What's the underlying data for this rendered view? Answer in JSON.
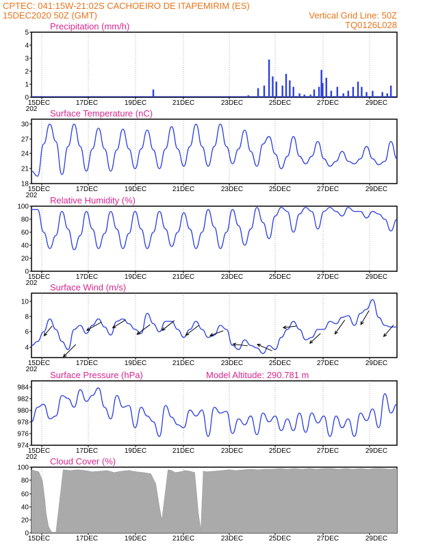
{
  "header": {
    "line1": "CPTEC:  041:15W-21:02S  CACHOEIRO DE ITAPEMIRIM (ES)",
    "line2_left": "15DEC2020 50Z (GMT)",
    "line2_right": "Vertical Grid Line: 50Z",
    "line3_right": "TQ0126L028"
  },
  "colors": {
    "header": "#e8741a",
    "title": "#d6278f",
    "series": "#2b3fe0",
    "cloud": "#aaaaaa",
    "grid": "#555555"
  },
  "x_axis": {
    "labels": [
      "15DEC",
      "17DEC",
      "19DEC",
      "21DEC",
      "23DEC",
      "25DEC",
      "27DEC",
      "29DEC"
    ],
    "year_fragment": "202"
  },
  "chart_data": [
    {
      "id": "precip",
      "type": "bar",
      "title": "Precipitation (mm/h)",
      "ylim": [
        0,
        5
      ],
      "yticks": [
        "0",
        "1",
        "2",
        "3",
        "4",
        "5"
      ],
      "xlim_days": [
        15,
        30
      ],
      "x_days": [
        20.0,
        23.9,
        24.3,
        24.55,
        24.75,
        24.9,
        25.05,
        25.3,
        25.45,
        25.6,
        25.75,
        26.0,
        26.2,
        26.45,
        26.6,
        26.8,
        26.9,
        26.95,
        27.1,
        27.3,
        27.55,
        27.8,
        28.0,
        28.2,
        28.4,
        28.55,
        28.75,
        29.0,
        29.4,
        29.6,
        29.75
      ],
      "values": [
        0.6,
        0.15,
        0.7,
        0.9,
        2.9,
        1.6,
        1.2,
        0.9,
        1.8,
        1.3,
        0.8,
        0.3,
        0.2,
        0.2,
        0.6,
        0.8,
        2.1,
        1.1,
        1.5,
        0.5,
        0.8,
        0.3,
        0.5,
        0.8,
        1.2,
        0.8,
        0.4,
        0.5,
        0.4,
        0.3,
        0.9
      ]
    },
    {
      "id": "temp",
      "type": "line",
      "title": "Surface Temperature (nC)",
      "ylim": [
        18,
        31
      ],
      "yticks": [
        "18",
        "21",
        "24",
        "27",
        "30"
      ],
      "xlim_days": [
        15,
        30
      ],
      "x_days": [
        15.0,
        15.25,
        15.5,
        15.75,
        16.0,
        16.25,
        16.5,
        16.75,
        17.0,
        17.25,
        17.5,
        17.75,
        18.0,
        18.25,
        18.5,
        18.75,
        19.0,
        19.25,
        19.5,
        19.75,
        20.0,
        20.25,
        20.5,
        20.75,
        21.0,
        21.25,
        21.5,
        21.75,
        22.0,
        22.25,
        22.5,
        22.75,
        23.0,
        23.25,
        23.5,
        23.75,
        24.0,
        24.25,
        24.5,
        24.75,
        25.0,
        25.25,
        25.5,
        25.75,
        26.0,
        26.25,
        26.5,
        26.75,
        27.0,
        27.25,
        27.5,
        27.75,
        28.0,
        28.25,
        28.5,
        28.75,
        29.0,
        29.25,
        29.5,
        29.75,
        30.0
      ],
      "values": [
        20.5,
        19.5,
        26.0,
        30.0,
        26.5,
        19.8,
        25.5,
        30.0,
        25.5,
        20.5,
        25.0,
        29.2,
        25.0,
        20.5,
        24.8,
        29.0,
        25.0,
        21.0,
        25.0,
        28.8,
        24.8,
        21.0,
        25.0,
        29.5,
        25.0,
        21.5,
        25.5,
        30.0,
        25.5,
        21.5,
        25.5,
        30.0,
        25.5,
        22.0,
        25.0,
        28.8,
        24.5,
        21.5,
        26.0,
        27.5,
        24.0,
        21.0,
        23.5,
        27.5,
        23.5,
        22.0,
        23.5,
        26.5,
        23.0,
        21.5,
        22.5,
        24.5,
        22.5,
        22.0,
        23.0,
        25.5,
        23.0,
        21.8,
        22.5,
        26.5,
        23.0
      ]
    },
    {
      "id": "rh",
      "type": "line",
      "title": "Relative Humidity (%)",
      "ylim": [
        0,
        100
      ],
      "yticks": [
        "0",
        "20",
        "40",
        "60",
        "80",
        "100"
      ],
      "xlim_days": [
        15,
        30
      ],
      "x_days": [
        15.0,
        15.25,
        15.5,
        15.75,
        16.0,
        16.25,
        16.5,
        16.75,
        17.0,
        17.25,
        17.5,
        17.75,
        18.0,
        18.25,
        18.5,
        18.75,
        19.0,
        19.25,
        19.5,
        19.75,
        20.0,
        20.25,
        20.5,
        20.75,
        21.0,
        21.25,
        21.5,
        21.75,
        22.0,
        22.25,
        22.5,
        22.75,
        23.0,
        23.25,
        23.5,
        23.75,
        24.0,
        24.25,
        24.5,
        24.75,
        25.0,
        25.25,
        25.5,
        25.75,
        26.0,
        26.25,
        26.5,
        26.75,
        27.0,
        27.25,
        27.5,
        27.75,
        28.0,
        28.25,
        28.5,
        28.75,
        29.0,
        29.25,
        29.5,
        29.75,
        30.0
      ],
      "values": [
        95.0,
        95.0,
        60.0,
        35.0,
        55.0,
        92.0,
        65.0,
        33.0,
        55.0,
        92.0,
        65.0,
        35.0,
        58.0,
        92.0,
        65.0,
        35.0,
        58.0,
        92.0,
        65.0,
        35.0,
        60.0,
        92.0,
        65.0,
        38.0,
        60.0,
        90.0,
        65.0,
        35.0,
        60.0,
        95.0,
        68.0,
        35.0,
        60.0,
        95.0,
        70.0,
        40.0,
        65.0,
        98.0,
        75.0,
        50.0,
        85.0,
        98.0,
        92.0,
        60.0,
        88.0,
        98.0,
        92.0,
        65.0,
        92.0,
        98.0,
        92.0,
        85.0,
        98.0,
        92.0,
        92.0,
        82.0,
        92.0,
        88.0,
        80.0,
        62.0,
        80.0
      ]
    },
    {
      "id": "wind",
      "type": "line",
      "title": "Surface Wind (m/s)",
      "ylim": [
        3,
        11
      ],
      "yticks": [
        "4",
        "6",
        "8",
        "10"
      ],
      "xlim_days": [
        15,
        30
      ],
      "x_days": [
        15.0,
        15.25,
        15.5,
        15.75,
        16.0,
        16.25,
        16.5,
        16.75,
        17.0,
        17.25,
        17.5,
        17.75,
        18.0,
        18.25,
        18.5,
        18.75,
        19.0,
        19.25,
        19.5,
        19.75,
        20.0,
        20.25,
        20.5,
        20.75,
        21.0,
        21.25,
        21.5,
        21.75,
        22.0,
        22.25,
        22.5,
        22.75,
        23.0,
        23.25,
        23.5,
        23.75,
        24.0,
        24.25,
        24.5,
        24.75,
        25.0,
        25.25,
        25.5,
        25.75,
        26.0,
        26.25,
        26.5,
        26.75,
        27.0,
        27.25,
        27.5,
        27.75,
        28.0,
        28.25,
        28.5,
        28.75,
        29.0,
        29.25,
        29.5,
        29.75,
        30.0
      ],
      "values": [
        4.5,
        5.0,
        6.2,
        7.8,
        6.5,
        5.0,
        4.0,
        6.5,
        7.0,
        6.0,
        7.0,
        7.8,
        6.8,
        5.8,
        7.5,
        7.8,
        7.2,
        6.5,
        6.0,
        8.5,
        7.2,
        6.2,
        7.5,
        7.5,
        6.5,
        5.5,
        6.5,
        7.5,
        6.5,
        5.5,
        5.8,
        7.0,
        6.5,
        4.5,
        4.0,
        5.2,
        4.5,
        4.2,
        3.5,
        4.5,
        4.0,
        5.5,
        6.5,
        7.5,
        6.5,
        5.2,
        5.5,
        6.5,
        6.5,
        7.5,
        7.2,
        8.0,
        8.2,
        7.0,
        8.5,
        9.0,
        10.2,
        8.0,
        7.0,
        6.8,
        6.8
      ],
      "arrow_days": [
        15.6,
        16.55,
        17.6,
        18.6,
        19.6,
        20.6,
        21.6,
        22.6,
        23.6,
        24.6,
        25.6,
        26.6,
        27.6,
        28.6,
        29.6
      ],
      "arrow_dx": [
        0.5,
        0.75,
        0.9,
        0.8,
        0.8,
        0.75,
        0.8,
        0.8,
        0.9,
        0.9,
        0.8,
        0.65,
        0.6,
        0.5,
        0.6
      ],
      "arrow_dy": [
        -0.6,
        -0.75,
        -0.5,
        -0.5,
        -0.6,
        -0.6,
        -0.6,
        -0.3,
        0.1,
        0.4,
        -0.1,
        -0.6,
        -0.85,
        -0.85,
        -0.7
      ]
    },
    {
      "id": "pres",
      "type": "line",
      "title": "Surface Pressure (hPa)",
      "annotation": "Model Altitude: 290.781 m",
      "ylim": [
        974,
        985
      ],
      "yticks": [
        "974",
        "976",
        "978",
        "980",
        "982",
        "984"
      ],
      "xlim_days": [
        15,
        30
      ],
      "x_days": [
        15.0,
        15.25,
        15.5,
        15.75,
        16.0,
        16.25,
        16.5,
        16.75,
        17.0,
        17.25,
        17.5,
        17.75,
        18.0,
        18.25,
        18.5,
        18.75,
        19.0,
        19.25,
        19.5,
        19.75,
        20.0,
        20.25,
        20.5,
        20.75,
        21.0,
        21.25,
        21.5,
        21.75,
        22.0,
        22.25,
        22.5,
        22.75,
        23.0,
        23.25,
        23.5,
        23.75,
        24.0,
        24.25,
        24.5,
        24.75,
        25.0,
        25.25,
        25.5,
        25.75,
        26.0,
        26.25,
        26.5,
        26.75,
        27.0,
        27.25,
        27.5,
        27.75,
        28.0,
        28.25,
        28.5,
        28.75,
        29.0,
        29.25,
        29.5,
        29.75,
        30.0
      ],
      "values": [
        978.0,
        980.5,
        981.0,
        978.5,
        979.0,
        982.5,
        982.0,
        980.5,
        983.5,
        981.5,
        982.5,
        983.8,
        980.5,
        978.5,
        982.5,
        980.5,
        980.8,
        977.0,
        980.5,
        979.0,
        978.0,
        975.5,
        980.8,
        978.8,
        977.5,
        977.0,
        980.0,
        979.0,
        980.0,
        975.5,
        980.5,
        979.5,
        979.8,
        976.0,
        978.5,
        977.5,
        979.0,
        975.8,
        979.5,
        978.0,
        979.0,
        976.5,
        978.5,
        976.5,
        979.5,
        976.2,
        979.5,
        977.8,
        979.0,
        975.5,
        979.0,
        977.0,
        978.5,
        975.5,
        979.5,
        978.2,
        980.2,
        977.0,
        982.8,
        979.5,
        981.0
      ]
    },
    {
      "id": "cloud",
      "type": "area",
      "title": "Cloud Cover (%)",
      "ylim": [
        0,
        100
      ],
      "yticks": [
        "0",
        "20",
        "40",
        "60",
        "80",
        "100"
      ],
      "xlim_days": [
        15,
        30
      ],
      "x_days": [
        15.0,
        15.3,
        15.45,
        15.55,
        15.6,
        15.7,
        15.8,
        15.9,
        16.0,
        16.3,
        16.6,
        16.9,
        17.2,
        17.5,
        17.8,
        18.1,
        18.4,
        18.7,
        19.0,
        19.3,
        19.6,
        19.9,
        20.1,
        20.25,
        20.35,
        20.45,
        20.6,
        20.75,
        20.9,
        21.1,
        21.3,
        21.5,
        21.7,
        21.85,
        21.95,
        22.05,
        22.2,
        22.5,
        22.8,
        23.1,
        23.4,
        23.7,
        24.0,
        24.3,
        24.6,
        24.9,
        25.2,
        25.5,
        25.8,
        26.1,
        26.4,
        26.7,
        27.0,
        27.3,
        27.6,
        27.9,
        28.2,
        28.5,
        28.8,
        29.1,
        29.4,
        29.7,
        30.0
      ],
      "values": [
        96.0,
        93.0,
        80.0,
        50.0,
        30.0,
        10.0,
        3.0,
        0.0,
        0.0,
        96.0,
        95.0,
        96.0,
        95.0,
        93.0,
        94.0,
        95.0,
        92.0,
        94.0,
        95.0,
        93.0,
        92.0,
        90.0,
        75.0,
        40.0,
        20.0,
        50.0,
        96.0,
        95.0,
        92.0,
        93.0,
        95.0,
        94.0,
        92.0,
        30.0,
        5.0,
        94.0,
        93.0,
        94.0,
        95.0,
        96.0,
        95.0,
        96.0,
        97.0,
        96.0,
        97.0,
        97.0,
        98.0,
        97.0,
        98.0,
        97.0,
        98.0,
        97.0,
        98.0,
        98.0,
        97.0,
        98.0,
        97.0,
        98.0,
        97.0,
        98.0,
        98.0,
        97.0,
        98.0
      ]
    }
  ]
}
